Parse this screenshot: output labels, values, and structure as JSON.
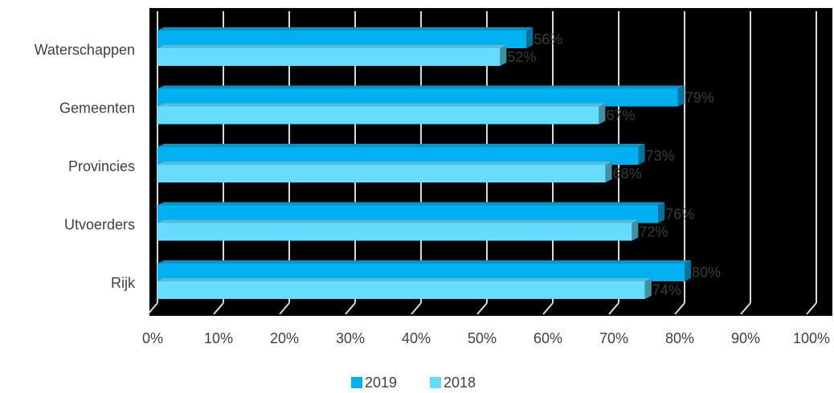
{
  "chart_data": {
    "type": "bar",
    "orientation": "horizontal",
    "categories": [
      "Waterschappen",
      "Gemeenten",
      "Provincies",
      "Utvoerders",
      "Rijk"
    ],
    "series": [
      {
        "name": "2019",
        "values": [
          56,
          79,
          73,
          76,
          80
        ],
        "labels": [
          "56%",
          "79%",
          "73%",
          "76%",
          "80%"
        ],
        "color": "#00B0F0"
      },
      {
        "name": "2018",
        "values": [
          52,
          67,
          68,
          72,
          74
        ],
        "labels": [
          "52%",
          "67%",
          "68%",
          "72%",
          "74%"
        ],
        "color": "#66DDFF"
      }
    ],
    "xlim": [
      0,
      100
    ],
    "x_ticks": [
      "0%",
      "10%",
      "20%",
      "30%",
      "40%",
      "50%",
      "60%",
      "70%",
      "80%",
      "90%",
      "100%"
    ],
    "plot_background": "#000000",
    "gridline_color": "#D9D9D9",
    "grid": true,
    "legend_position": "bottom",
    "style": "3d-clustered-bar"
  }
}
